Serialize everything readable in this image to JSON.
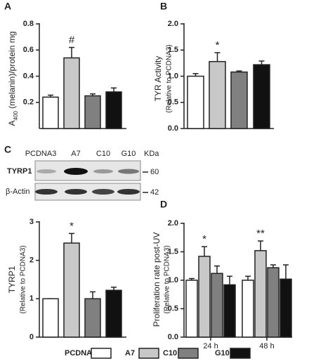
{
  "chart_data": [
    {
      "type": "bar",
      "panel": "A",
      "ylabel": [
        "A",
        "400",
        " (melanin)/protein mg"
      ],
      "values": [
        0.24,
        0.54,
        0.25,
        0.28
      ],
      "errors": [
        0.015,
        0.08,
        0.015,
        0.03
      ],
      "colors": [
        "#ffffff",
        "#c8c8c8",
        "#808080",
        "#111111"
      ],
      "ylim": [
        0,
        0.8
      ],
      "yticks": [
        0.2,
        0.4,
        0.6,
        0.8
      ],
      "annotation": "#"
    },
    {
      "type": "bar",
      "panel": "B",
      "ylabel": [
        "TYR Activity"
      ],
      "ylabel_note": "(Relative to PCDNA3)",
      "values": [
        1.0,
        1.28,
        1.08,
        1.22
      ],
      "errors": [
        0.05,
        0.17,
        0.02,
        0.07
      ],
      "colors": [
        "#ffffff",
        "#c8c8c8",
        "#808080",
        "#111111"
      ],
      "ylim": [
        0,
        2
      ],
      "yticks": [
        {
          "value": 0,
          "label": "0.0"
        },
        0.5,
        {
          "value": 1,
          "label": "1.0"
        },
        1.5,
        {
          "value": 2,
          "label": "2.0"
        }
      ],
      "annotation": "*"
    },
    {
      "type": "bar",
      "panel": "C",
      "ylabel": [
        "TYRP1"
      ],
      "ylabel_note": "(Relative to PCDNA3)",
      "values": [
        1.0,
        2.45,
        1.0,
        1.22
      ],
      "errors": [
        0,
        0.25,
        0.18,
        0.08
      ],
      "colors": [
        "#ffffff",
        "#c8c8c8",
        "#808080",
        "#111111"
      ],
      "ylim": [
        0,
        3
      ],
      "yticks": [
        0,
        1,
        2,
        3
      ],
      "annotation": "*"
    },
    {
      "type": "grouped_bar",
      "panel": "D",
      "ylabel": [
        "Proliferation rate post-UV"
      ],
      "ylabel_note": "(Relative to PCDNA3)",
      "categories": [
        "24 h",
        "48 h"
      ],
      "series": [
        {
          "name": "PCDNA3",
          "color": "#ffffff",
          "values": [
            1.0,
            1.0
          ],
          "errors": [
            0.03,
            0.07
          ]
        },
        {
          "name": "A7",
          "color": "#c8c8c8",
          "values": [
            1.42,
            1.52
          ],
          "errors": [
            0.17,
            0.17
          ]
        },
        {
          "name": "C10",
          "color": "#808080",
          "values": [
            1.12,
            1.22
          ],
          "errors": [
            0.13,
            0.05
          ]
        },
        {
          "name": "G10",
          "color": "#111111",
          "values": [
            0.92,
            1.02
          ],
          "errors": [
            0.15,
            0.25
          ]
        }
      ],
      "ylim": [
        0,
        2
      ],
      "yticks": [
        {
          "value": 0,
          "label": "0.0"
        },
        0.5,
        {
          "value": 1,
          "label": "1.0"
        },
        1.5,
        {
          "value": 2,
          "label": "2.0"
        }
      ],
      "annotations": [
        "*",
        "**"
      ]
    }
  ],
  "blot": {
    "lanes": [
      "PCDNA3",
      "A7",
      "C10",
      "G10"
    ],
    "unit": "KDa",
    "rows": [
      {
        "name": "TYRP1",
        "size": "60"
      },
      {
        "name": "β-Actin",
        "size": "42"
      }
    ]
  }
}
